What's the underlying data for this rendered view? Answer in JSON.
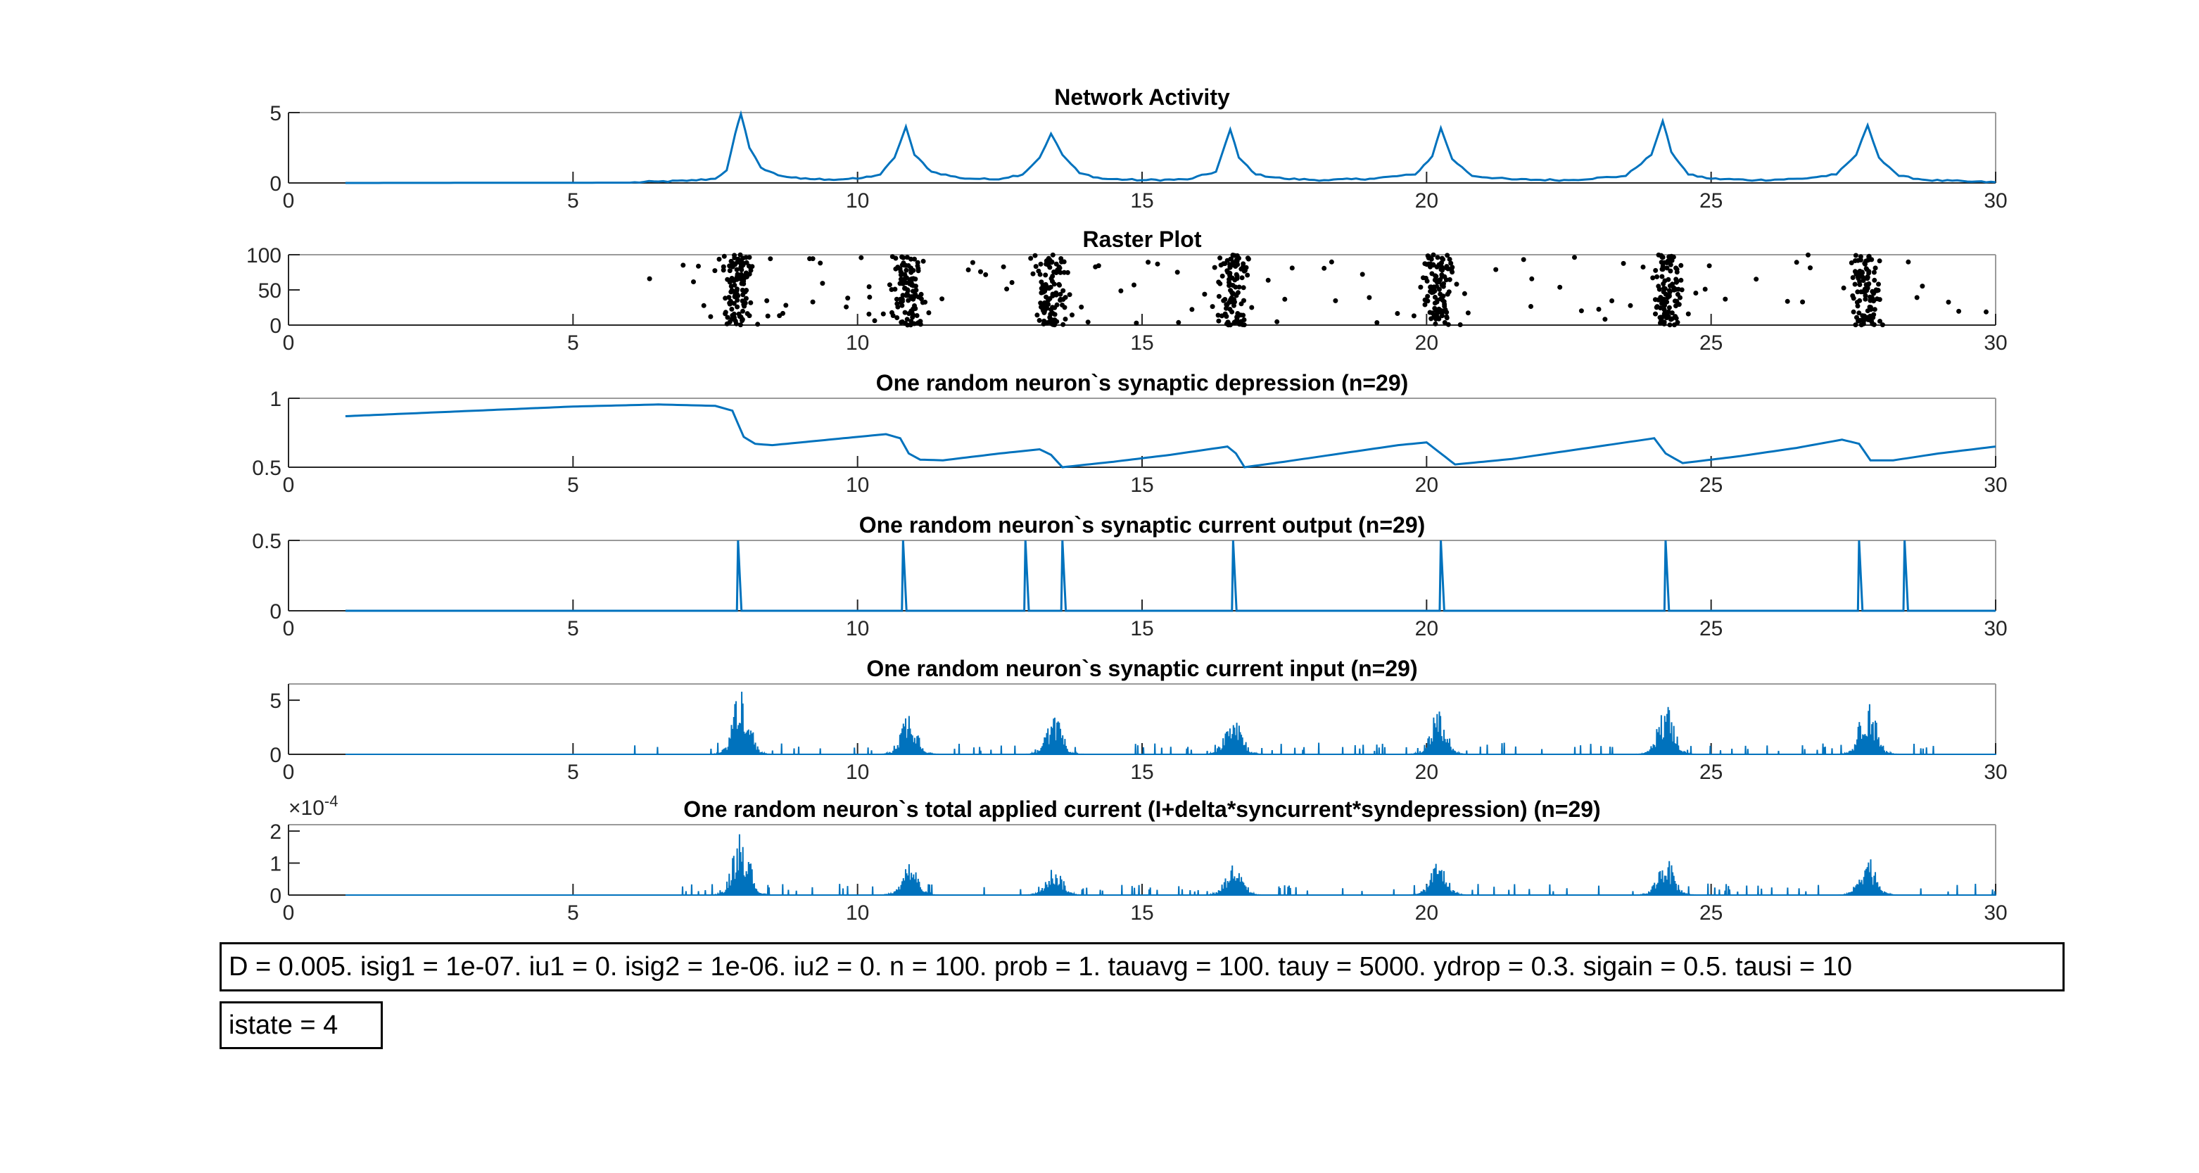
{
  "colors": {
    "line": "#0072BD",
    "raster": "#000000",
    "axis": "#262626",
    "frame": "#9a9a9a"
  },
  "annotations": {
    "params": "D = 0.005. isig1 = 1e-07. iu1 = 0. isig2 = 1e-06. iu2 = 0. n = 100. prob = 1. tauavg = 100. tauy = 5000. ydrop = 0.3. sigain = 0.5. tausi = 10",
    "istate": "istate = 4"
  },
  "chart_data": [
    {
      "type": "line",
      "title": "Network Activity",
      "xlabel": "",
      "ylabel": "",
      "xlim": [
        0,
        30
      ],
      "ylim": [
        0,
        5
      ],
      "xticks": [
        "0",
        "5",
        "10",
        "15",
        "20",
        "25",
        "30"
      ],
      "yticks": [
        "0",
        "5"
      ],
      "series": [
        {
          "x": [
            1,
            6,
            6.5,
            7,
            7.5,
            7.7,
            7.85,
            7.95,
            8.1,
            8.3,
            8.6,
            9.0,
            9.5,
            10.0,
            10.4,
            10.65,
            10.85,
            11.0,
            11.3,
            11.8,
            12.4,
            12.9,
            13.2,
            13.4,
            13.6,
            13.9,
            14.3,
            15,
            15.8,
            16.3,
            16.55,
            16.7,
            17.0,
            17.5,
            18.2,
            19.0,
            19.8,
            20.1,
            20.25,
            20.45,
            20.8,
            21.5,
            22.5,
            23.5,
            23.95,
            24.15,
            24.3,
            24.6,
            25.0,
            25.8,
            26.6,
            27.2,
            27.55,
            27.75,
            27.95,
            28.3,
            28.8,
            29.5,
            30
          ],
          "y": [
            0,
            0.02,
            0.1,
            0.15,
            0.3,
            0.9,
            3.5,
            4.9,
            2.5,
            1.1,
            0.55,
            0.3,
            0.25,
            0.3,
            0.6,
            1.8,
            4.0,
            2.0,
            0.8,
            0.35,
            0.25,
            0.6,
            1.8,
            3.5,
            2.0,
            0.7,
            0.3,
            0.2,
            0.25,
            0.8,
            3.8,
            1.8,
            0.6,
            0.3,
            0.2,
            0.3,
            0.6,
            1.9,
            3.9,
            1.7,
            0.5,
            0.25,
            0.2,
            0.5,
            2.0,
            4.4,
            2.2,
            0.6,
            0.3,
            0.2,
            0.3,
            0.6,
            2.0,
            4.1,
            1.8,
            0.5,
            0.2,
            0.1,
            0.05
          ]
        }
      ]
    },
    {
      "type": "scatter",
      "title": "Raster Plot",
      "xlabel": "",
      "ylabel": "",
      "xlim": [
        0,
        30
      ],
      "ylim": [
        0,
        100
      ],
      "xticks": [
        "0",
        "5",
        "10",
        "15",
        "20",
        "25",
        "30"
      ],
      "yticks": [
        "0",
        "50",
        "100"
      ],
      "bursts": [
        7.9,
        10.9,
        13.4,
        16.6,
        20.2,
        24.2,
        27.7
      ],
      "burst_spikes_per_event": 100,
      "scattered_window": [
        6.3,
        29.9
      ],
      "scattered_spikes": 130
    },
    {
      "type": "line",
      "title": "One random neuron`s synaptic depression (n=29)",
      "xlabel": "",
      "ylabel": "",
      "xlim": [
        0,
        30
      ],
      "ylim": [
        0.5,
        1
      ],
      "xticks": [
        "0",
        "5",
        "10",
        "15",
        "20",
        "25",
        "30"
      ],
      "yticks": [
        "0.5",
        "1"
      ],
      "series": [
        {
          "x": [
            1,
            3,
            5,
            6.5,
            7.5,
            7.8,
            8.0,
            8.2,
            8.5,
            9.5,
            10.5,
            10.75,
            10.9,
            11.1,
            11.5,
            12.5,
            13.2,
            13.4,
            13.6,
            14.5,
            15.5,
            16.5,
            16.65,
            16.8,
            17.5,
            18.5,
            19.5,
            20.0,
            20.25,
            20.5,
            21.5,
            22.5,
            23.5,
            24.0,
            24.2,
            24.5,
            25.5,
            26.5,
            27.3,
            27.6,
            27.8,
            28.2,
            29.0,
            30
          ],
          "y": [
            0.87,
            0.905,
            0.94,
            0.955,
            0.945,
            0.91,
            0.72,
            0.67,
            0.66,
            0.7,
            0.74,
            0.71,
            0.6,
            0.555,
            0.55,
            0.6,
            0.63,
            0.59,
            0.5,
            0.54,
            0.59,
            0.65,
            0.6,
            0.5,
            0.54,
            0.6,
            0.66,
            0.68,
            0.6,
            0.52,
            0.56,
            0.62,
            0.68,
            0.71,
            0.6,
            0.53,
            0.58,
            0.64,
            0.7,
            0.67,
            0.55,
            0.55,
            0.6,
            0.65
          ]
        }
      ]
    },
    {
      "type": "line",
      "title": "One random neuron`s synaptic current output (n=29)",
      "xlabel": "",
      "ylabel": "",
      "xlim": [
        0,
        30
      ],
      "ylim": [
        0,
        0.5
      ],
      "xticks": [
        "0",
        "5",
        "10",
        "15",
        "20",
        "25",
        "30"
      ],
      "yticks": [
        "0",
        "0.5"
      ],
      "spikes": [
        {
          "x": 7.9,
          "peak": 0.5
        },
        {
          "x": 10.8,
          "peak": 0.5
        },
        {
          "x": 12.95,
          "peak": 0.5
        },
        {
          "x": 13.6,
          "peak": 0.5
        },
        {
          "x": 16.6,
          "peak": 0.5
        },
        {
          "x": 20.25,
          "peak": 0.5
        },
        {
          "x": 24.2,
          "peak": 0.5
        },
        {
          "x": 27.6,
          "peak": 0.5
        },
        {
          "x": 28.4,
          "peak": 0.5
        }
      ]
    },
    {
      "type": "line",
      "title": "One random neuron`s synaptic current input (n=29)",
      "xlabel": "",
      "ylabel": "",
      "xlim": [
        0,
        30
      ],
      "ylim": [
        0,
        6.5
      ],
      "xticks": [
        "0",
        "5",
        "10",
        "15",
        "20",
        "25",
        "30"
      ],
      "yticks": [
        "0",
        "5"
      ],
      "bursts": [
        {
          "x": 7.95,
          "peak": 6.3
        },
        {
          "x": 10.9,
          "peak": 4.2
        },
        {
          "x": 13.45,
          "peak": 3.6
        },
        {
          "x": 16.6,
          "peak": 4.3
        },
        {
          "x": 20.2,
          "peak": 4.1
        },
        {
          "x": 24.2,
          "peak": 4.8
        },
        {
          "x": 27.75,
          "peak": 5.3
        }
      ]
    },
    {
      "type": "line",
      "title": "One random neuron`s total applied current (I+delta*syncurrent*syndepression) (n=29)",
      "xlabel": "",
      "ylabel": "",
      "y_exponent": "×10",
      "y_exponent_power": "-4",
      "xlim": [
        0,
        30
      ],
      "ylim": [
        0,
        2.2
      ],
      "xticks": [
        "0",
        "5",
        "10",
        "15",
        "20",
        "25",
        "30"
      ],
      "yticks": [
        "0",
        "1",
        "2"
      ],
      "bursts": [
        {
          "x": 7.95,
          "peak": 2.1
        },
        {
          "x": 10.9,
          "peak": 1.1
        },
        {
          "x": 13.45,
          "peak": 0.9
        },
        {
          "x": 16.6,
          "peak": 1.0
        },
        {
          "x": 20.2,
          "peak": 1.1
        },
        {
          "x": 24.2,
          "peak": 1.2
        },
        {
          "x": 27.75,
          "peak": 1.3
        }
      ]
    }
  ]
}
